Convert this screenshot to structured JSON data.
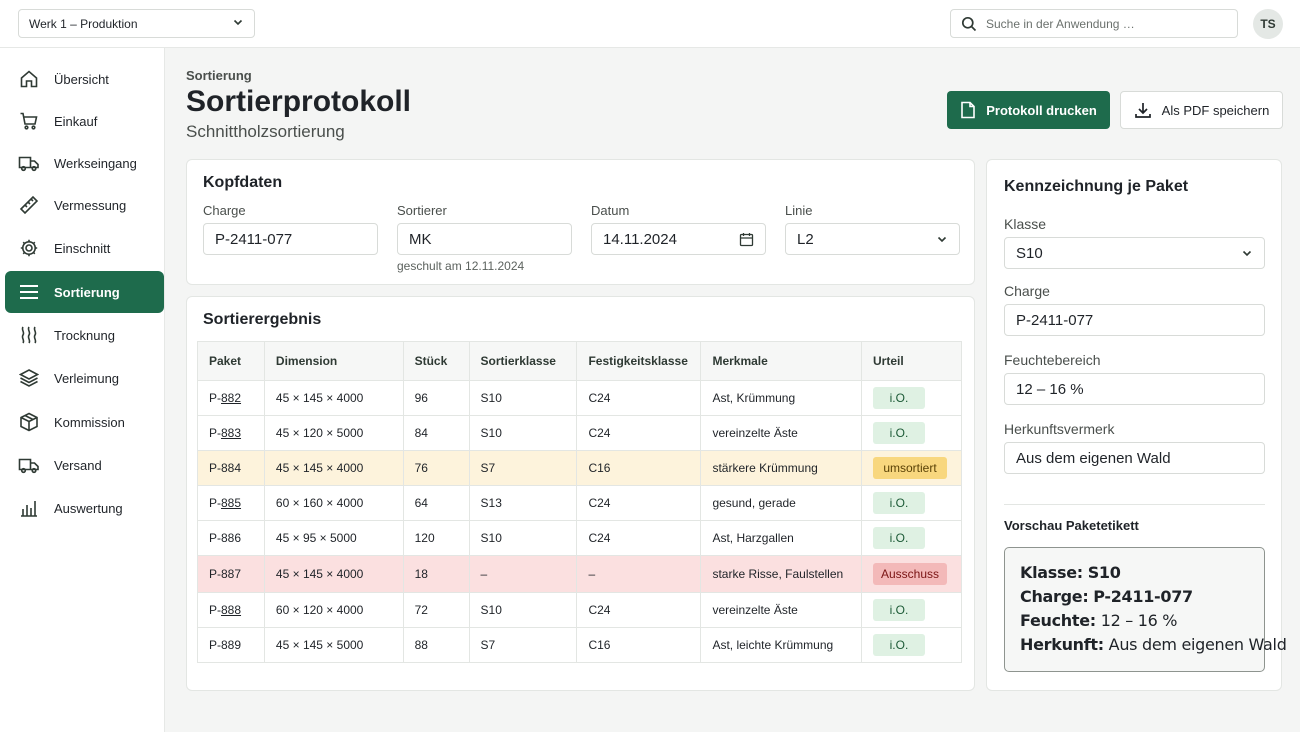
{
  "topbar": {
    "plant_select": "Werk 1 – Produktion",
    "search_placeholder": "Suche in der Anwendung …",
    "avatar_initials": "TS"
  },
  "sidebar": {
    "items": [
      {
        "label": "Übersicht",
        "icon": "home-icon"
      },
      {
        "label": "Einkauf",
        "icon": "cart-icon"
      },
      {
        "label": "Werkseingang",
        "icon": "truck-icon"
      },
      {
        "label": "Vermessung",
        "icon": "ruler-icon"
      },
      {
        "label": "Einschnitt",
        "icon": "gear-icon"
      },
      {
        "label": "Sortierung",
        "icon": "list-icon",
        "active": true
      },
      {
        "label": "Trocknung",
        "icon": "waves-icon"
      },
      {
        "label": "Verleimung",
        "icon": "layers-icon"
      },
      {
        "label": "Kommission",
        "icon": "box-icon"
      },
      {
        "label": "Versand",
        "icon": "truck-icon"
      },
      {
        "label": "Auswertung",
        "icon": "bar-chart-icon"
      }
    ]
  },
  "header": {
    "breadcrumb": "Sortierung",
    "title": "Sortierprotokoll",
    "subtitle": "Schnittholzsortierung",
    "print_button": "Protokoll drucken",
    "pdf_button": "Als PDF speichern"
  },
  "kopfdaten": {
    "title": "Kopfdaten",
    "charge_label": "Charge",
    "charge_value": "P-2411-077",
    "sortierer_label": "Sortierer",
    "sortierer_value": "MK",
    "sortierer_hint": "geschult am 12.11.2024",
    "datum_label": "Datum",
    "datum_value": "14.11.2024",
    "linie_label": "Linie",
    "linie_value": "L2"
  },
  "ergebnis": {
    "title": "Sortierergebnis",
    "columns": [
      "Paket",
      "Dimension",
      "Stück",
      "Sortierklasse",
      "Festigkeitsklasse",
      "Merkmale",
      "Urteil"
    ],
    "rows": [
      {
        "prefix": "P-",
        "num": "882",
        "link": true,
        "dim": "45 × 145 × 4000",
        "stueck": "96",
        "sort": "S10",
        "fest": "C24",
        "merk": "Ast, Krümmung",
        "urteil": "i.O.",
        "status": "ok"
      },
      {
        "prefix": "P-",
        "num": "883",
        "link": true,
        "dim": "45 × 120 × 5000",
        "stueck": "84",
        "sort": "S10",
        "fest": "C24",
        "merk": "vereinzelte Äste",
        "urteil": "i.O.",
        "status": "ok"
      },
      {
        "prefix": "P-",
        "num": "884",
        "link": false,
        "dim": "45 × 145 × 4000",
        "stueck": "76",
        "sort": "S7",
        "fest": "C16",
        "merk": "stärkere Krümmung",
        "urteil": "umsortiert",
        "status": "warn"
      },
      {
        "prefix": "P-",
        "num": "885",
        "link": true,
        "dim": "60 × 160 × 4000",
        "stueck": "64",
        "sort": "S13",
        "fest": "C24",
        "merk": "gesund, gerade",
        "urteil": "i.O.",
        "status": "ok"
      },
      {
        "prefix": "P-",
        "num": "886",
        "link": false,
        "dim": "45 × 95 × 5000",
        "stueck": "120",
        "sort": "S10",
        "fest": "C24",
        "merk": "Ast, Harzgallen",
        "urteil": "i.O.",
        "status": "ok"
      },
      {
        "prefix": "P-",
        "num": "887",
        "link": false,
        "dim": "45 × 145 × 4000",
        "stueck": "18",
        "sort": "–",
        "fest": "–",
        "merk": "starke Risse, Faulstellen",
        "urteil": "Ausschuss",
        "status": "bad"
      },
      {
        "prefix": "P-",
        "num": "888",
        "link": true,
        "dim": "60 × 120 × 4000",
        "stueck": "72",
        "sort": "S10",
        "fest": "C24",
        "merk": "vereinzelte Äste",
        "urteil": "i.O.",
        "status": "ok"
      },
      {
        "prefix": "P-",
        "num": "889",
        "link": false,
        "dim": "45 × 145 × 5000",
        "stueck": "88",
        "sort": "S7",
        "fest": "C16",
        "merk": "Ast, leichte Krümmung",
        "urteil": "i.O.",
        "status": "ok"
      }
    ]
  },
  "kennzeichnung": {
    "title": "Kennzeichnung je Paket",
    "klasse_label": "Klasse",
    "klasse_value": "S10",
    "charge_label": "Charge",
    "charge_value": "P-2411-077",
    "feuchte_label": "Feuchtebereich",
    "feuchte_value": "12 – 16 %",
    "herkunft_label": "Herkunftsvermerk",
    "herkunft_value": "Aus dem eigenen Wald",
    "preview_label": "Vorschau Paketetikett",
    "preview": {
      "klasse_key": "Klasse:",
      "klasse_val": "S10",
      "charge_key": "Charge:",
      "charge_val": "P-2411-077",
      "feuchte_key": "Feuchte:",
      "feuchte_val": "12 – 16 %",
      "herkunft_key": "Herkunft:",
      "herkunft_val": "Aus dem eigenen Wald"
    }
  },
  "colors": {
    "accent": "#1e6b4c",
    "warn": "#f8d77e",
    "bad": "#f3b9b9",
    "ok": "#dff1e3"
  }
}
